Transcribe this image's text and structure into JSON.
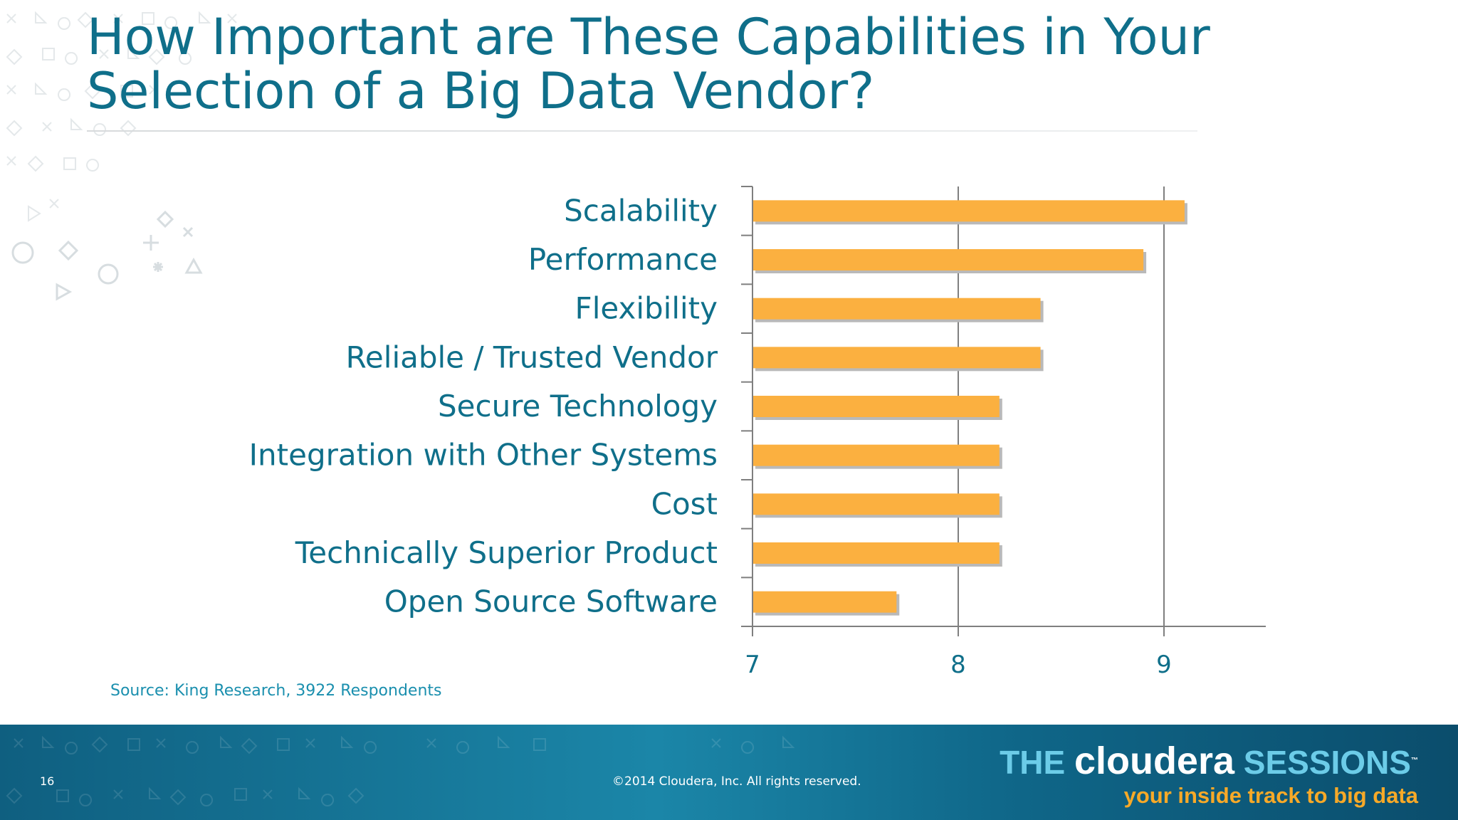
{
  "title": "How Important are These Capabilities in Your Selection of a Big Data Vendor?",
  "source": "Source: King Research, 3922 Respondents",
  "footer": {
    "page_number": "16",
    "copyright": "©2014 Cloudera, Inc. All rights reserved.",
    "brand_the": "THE",
    "brand_name": "cloudera",
    "brand_sessions": "SESSIONS",
    "brand_tm": "™",
    "brand_tagline": "your inside track to big data"
  },
  "colors": {
    "title": "#0f6f8a",
    "bar": "#fbb040",
    "bar_shadow": "#b9b9b9",
    "footer": "#1478a0",
    "brand_accent": "#f7a928"
  },
  "chart_data": {
    "type": "bar",
    "orientation": "horizontal",
    "categories": [
      "Scalability",
      "Performance",
      "Flexibility",
      "Reliable / Trusted Vendor",
      "Secure Technology",
      "Integration with Other Systems",
      "Cost",
      "Technically Superior Product",
      "Open Source Software"
    ],
    "values": [
      9.1,
      8.9,
      8.4,
      8.4,
      8.2,
      8.2,
      8.2,
      8.2,
      7.7
    ],
    "xlim": [
      7,
      9.5
    ],
    "ticks": [
      7,
      8,
      9
    ],
    "tick_labels": [
      "7",
      "8",
      "9"
    ],
    "grid": "vertical",
    "title": "",
    "xlabel": "",
    "ylabel": ""
  }
}
